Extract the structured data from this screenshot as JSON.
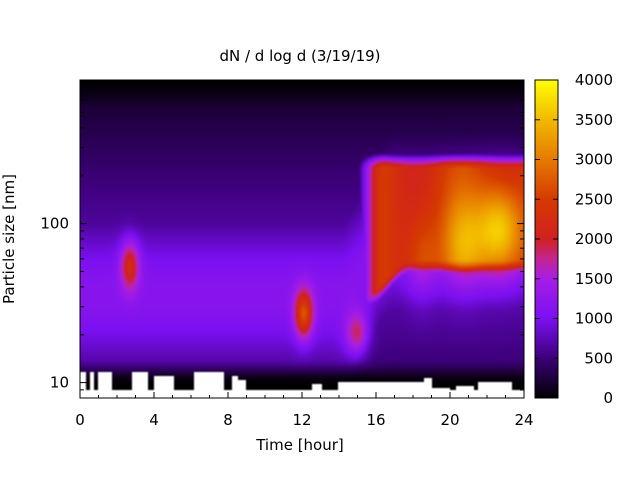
{
  "chart_data": {
    "type": "heatmap",
    "title": "dN / d log d (3/19/19)",
    "xlabel": "Time [hour]",
    "ylabel": "Particle size [nm]",
    "x_range": [
      0,
      24
    ],
    "y_range_nm": [
      8,
      800
    ],
    "y_scale": "log",
    "x_ticks": [
      0,
      4,
      8,
      12,
      16,
      20,
      24
    ],
    "y_ticks": [
      {
        "value": 10,
        "label": "10"
      },
      {
        "value": 100,
        "label": "100"
      }
    ],
    "colorbar": {
      "range": [
        0,
        4000
      ],
      "ticks": [
        0,
        500,
        1000,
        1500,
        2000,
        2500,
        3000,
        3500,
        4000
      ],
      "palette": "black-purple-red-orange-yellow",
      "stops": [
        {
          "v": 0,
          "color": "#000000"
        },
        {
          "v": 500,
          "color": "#3c0078"
        },
        {
          "v": 1000,
          "color": "#7b10f0"
        },
        {
          "v": 1500,
          "color": "#a61ee6"
        },
        {
          "v": 1750,
          "color": "#c2258f"
        },
        {
          "v": 2000,
          "color": "#d02020"
        },
        {
          "v": 2500,
          "color": "#d53a00"
        },
        {
          "v": 3000,
          "color": "#e67a00"
        },
        {
          "v": 3500,
          "color": "#f2b900"
        },
        {
          "v": 4000,
          "color": "#ffff00"
        }
      ]
    },
    "features": [
      {
        "t": 2.7,
        "d_nm": 55,
        "value": 1900
      },
      {
        "t": 12.1,
        "d_nm": 27,
        "value": 2500
      },
      {
        "t": 15.0,
        "d_nm": 20,
        "value": 2000
      },
      {
        "t": 16.5,
        "d_nm": 70,
        "value": 2600
      },
      {
        "t": 18.5,
        "d_nm": 60,
        "value": 2800
      },
      {
        "t": 20.5,
        "d_nm": 70,
        "value": 3000
      },
      {
        "t": 22.7,
        "d_nm": 90,
        "value": 3800
      }
    ],
    "grid": false,
    "legend": "none"
  }
}
